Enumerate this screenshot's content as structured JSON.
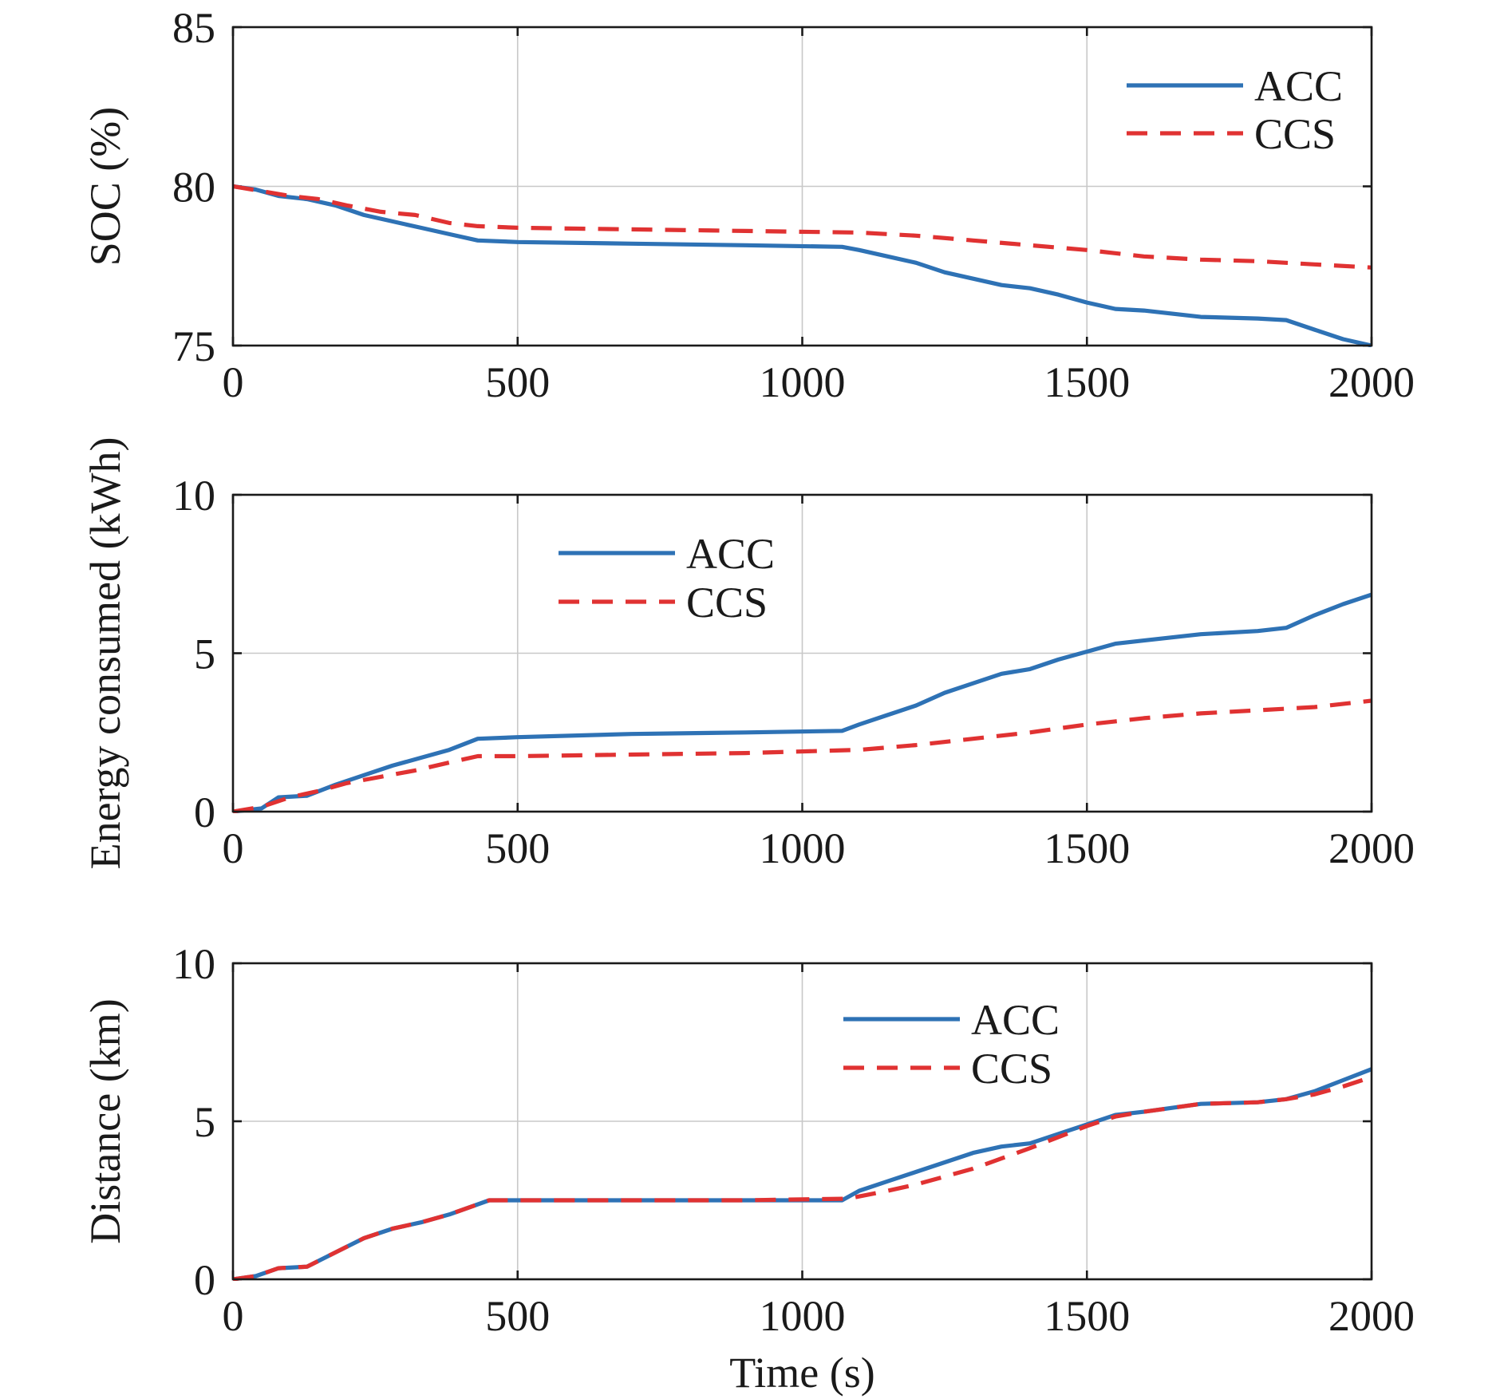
{
  "colors": {
    "acc": "#2e72b5",
    "ccs": "#e03232",
    "grid": "#c8c8c8",
    "axes": "#1a1a1a"
  },
  "chart_data": [
    {
      "type": "line",
      "ylabel": "SOC (%)",
      "xlabel": "",
      "xlim": [
        0,
        2000
      ],
      "ylim": [
        75,
        85
      ],
      "xticks": [
        "0",
        "500",
        "1000",
        "1500",
        "2000"
      ],
      "yticks": [
        "75",
        "80",
        "85"
      ],
      "grid": true,
      "legend_position": "top-right",
      "series": [
        {
          "name": "ACC",
          "style": "solid",
          "x": [
            0,
            40,
            80,
            130,
            180,
            230,
            280,
            330,
            380,
            430,
            500,
            700,
            900,
            1070,
            1100,
            1150,
            1200,
            1250,
            1300,
            1350,
            1400,
            1450,
            1500,
            1550,
            1600,
            1700,
            1800,
            1850,
            1900,
            1950,
            2000
          ],
          "y": [
            80.0,
            79.9,
            79.7,
            79.6,
            79.4,
            79.1,
            78.9,
            78.7,
            78.5,
            78.3,
            78.25,
            78.2,
            78.15,
            78.1,
            78.0,
            77.8,
            77.6,
            77.3,
            77.1,
            76.9,
            76.8,
            76.6,
            76.35,
            76.15,
            76.1,
            75.9,
            75.85,
            75.8,
            75.5,
            75.2,
            75.0
          ]
        },
        {
          "name": "CCS",
          "style": "dashed",
          "x": [
            0,
            50,
            100,
            150,
            200,
            260,
            320,
            380,
            430,
            500,
            700,
            900,
            1100,
            1200,
            1300,
            1400,
            1500,
            1550,
            1600,
            1700,
            1800,
            1900,
            2000
          ],
          "y": [
            80.0,
            79.85,
            79.7,
            79.6,
            79.4,
            79.2,
            79.1,
            78.85,
            78.75,
            78.7,
            78.65,
            78.6,
            78.55,
            78.45,
            78.3,
            78.15,
            78.0,
            77.9,
            77.8,
            77.7,
            77.65,
            77.55,
            77.45
          ]
        }
      ]
    },
    {
      "type": "line",
      "ylabel": "Energy consumed (kWh)",
      "xlabel": "",
      "xlim": [
        0,
        2000
      ],
      "ylim": [
        0,
        10
      ],
      "xticks": [
        "0",
        "500",
        "1000",
        "1500",
        "2000"
      ],
      "yticks": [
        "0",
        "5",
        "10"
      ],
      "grid": true,
      "legend_position": "top-center",
      "series": [
        {
          "name": "ACC",
          "style": "solid",
          "x": [
            0,
            50,
            80,
            130,
            180,
            230,
            280,
            330,
            380,
            430,
            500,
            700,
            900,
            1070,
            1100,
            1150,
            1200,
            1250,
            1300,
            1350,
            1400,
            1450,
            1500,
            1550,
            1600,
            1700,
            1800,
            1850,
            1900,
            1950,
            2000
          ],
          "y": [
            0,
            0.1,
            0.45,
            0.5,
            0.85,
            1.15,
            1.45,
            1.7,
            1.95,
            2.3,
            2.35,
            2.45,
            2.5,
            2.55,
            2.75,
            3.05,
            3.35,
            3.75,
            4.05,
            4.35,
            4.5,
            4.8,
            5.05,
            5.3,
            5.4,
            5.6,
            5.7,
            5.8,
            6.2,
            6.55,
            6.85
          ]
        },
        {
          "name": "CCS",
          "style": "dashed",
          "x": [
            0,
            50,
            100,
            150,
            200,
            260,
            320,
            380,
            430,
            500,
            700,
            900,
            1100,
            1200,
            1300,
            1400,
            1500,
            1550,
            1600,
            1700,
            1800,
            1900,
            2000
          ],
          "y": [
            0,
            0.15,
            0.45,
            0.65,
            0.9,
            1.1,
            1.3,
            1.55,
            1.75,
            1.75,
            1.8,
            1.85,
            1.95,
            2.1,
            2.3,
            2.5,
            2.75,
            2.85,
            2.95,
            3.1,
            3.2,
            3.3,
            3.5
          ]
        }
      ]
    },
    {
      "type": "line",
      "ylabel": "Distance (km)",
      "xlabel": "Time (s)",
      "xlim": [
        0,
        2000
      ],
      "ylim": [
        0,
        10
      ],
      "xticks": [
        "0",
        "500",
        "1000",
        "1500",
        "2000"
      ],
      "yticks": [
        "0",
        "5",
        "10"
      ],
      "grid": true,
      "legend_position": "top-right",
      "series": [
        {
          "name": "ACC",
          "style": "solid",
          "x": [
            0,
            40,
            80,
            130,
            180,
            230,
            280,
            330,
            380,
            450,
            500,
            700,
            900,
            1070,
            1100,
            1150,
            1200,
            1250,
            1300,
            1350,
            1400,
            1450,
            1500,
            1550,
            1600,
            1700,
            1800,
            1850,
            1900,
            1950,
            2000
          ],
          "y": [
            0,
            0.1,
            0.35,
            0.4,
            0.85,
            1.3,
            1.6,
            1.8,
            2.05,
            2.5,
            2.5,
            2.5,
            2.5,
            2.5,
            2.8,
            3.1,
            3.4,
            3.7,
            4.0,
            4.2,
            4.3,
            4.6,
            4.9,
            5.2,
            5.3,
            5.55,
            5.6,
            5.7,
            5.95,
            6.3,
            6.65
          ]
        },
        {
          "name": "CCS",
          "style": "dashed",
          "x": [
            0,
            40,
            80,
            130,
            180,
            230,
            280,
            330,
            380,
            450,
            500,
            700,
            900,
            1080,
            1150,
            1200,
            1300,
            1400,
            1500,
            1550,
            1600,
            1700,
            1800,
            1850,
            1900,
            1950,
            2000
          ],
          "y": [
            0,
            0.1,
            0.35,
            0.4,
            0.85,
            1.3,
            1.6,
            1.8,
            2.05,
            2.5,
            2.5,
            2.5,
            2.5,
            2.55,
            2.8,
            3.0,
            3.5,
            4.15,
            4.85,
            5.15,
            5.3,
            5.55,
            5.6,
            5.7,
            5.85,
            6.1,
            6.4
          ]
        }
      ]
    }
  ]
}
